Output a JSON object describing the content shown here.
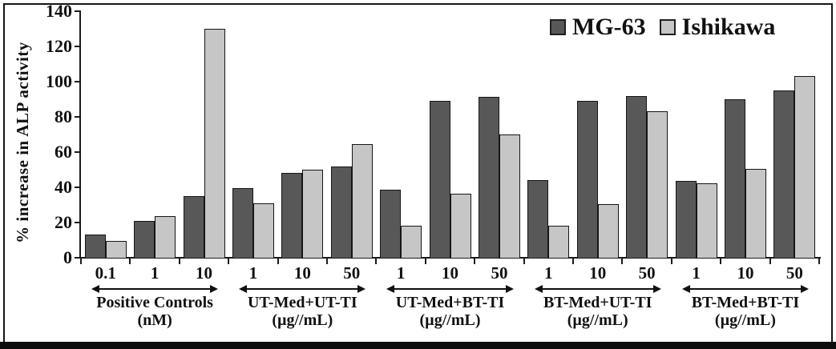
{
  "chart_data": {
    "type": "bar",
    "title": "",
    "ylabel": "% increase in ALP activity",
    "xlabel": "",
    "ylim": [
      0,
      140
    ],
    "yticks": [
      0,
      20,
      40,
      60,
      80,
      100,
      120,
      140
    ],
    "grid": false,
    "legend_position": "top-right",
    "frame_color": "#161616",
    "groups": [
      {
        "label": "Positive Controls",
        "unit": "(nM)",
        "doses": [
          "0.1",
          "1",
          "10"
        ]
      },
      {
        "label": "UT-Med+UT-TI",
        "unit": "(µg//mL)",
        "doses": [
          "1",
          "10",
          "50"
        ]
      },
      {
        "label": "UT-Med+BT-TI",
        "unit": "(µg//mL)",
        "doses": [
          "1",
          "10",
          "50"
        ]
      },
      {
        "label": "BT-Med+UT-TI",
        "unit": "(µg//mL)",
        "doses": [
          "1",
          "10",
          "50"
        ]
      },
      {
        "label": "BT-Med+BT-TI",
        "unit": "(µg//mL)",
        "doses": [
          "1",
          "10",
          "50"
        ]
      }
    ],
    "series": [
      {
        "name": "MG-63",
        "color": "#585858",
        "values": [
          [
            13,
            21,
            35
          ],
          [
            39.5,
            48,
            52
          ],
          [
            38.5,
            89,
            91.5
          ],
          [
            44,
            89,
            92
          ],
          [
            43.5,
            90,
            95
          ]
        ]
      },
      {
        "name": "Ishikawa",
        "color": "#c6c6c6",
        "values": [
          [
            9.5,
            23.5,
            130
          ],
          [
            31,
            50,
            64.5
          ],
          [
            18,
            36.5,
            70
          ],
          [
            18,
            30.5,
            83
          ],
          [
            42.5,
            50.5,
            103
          ]
        ]
      }
    ]
  }
}
